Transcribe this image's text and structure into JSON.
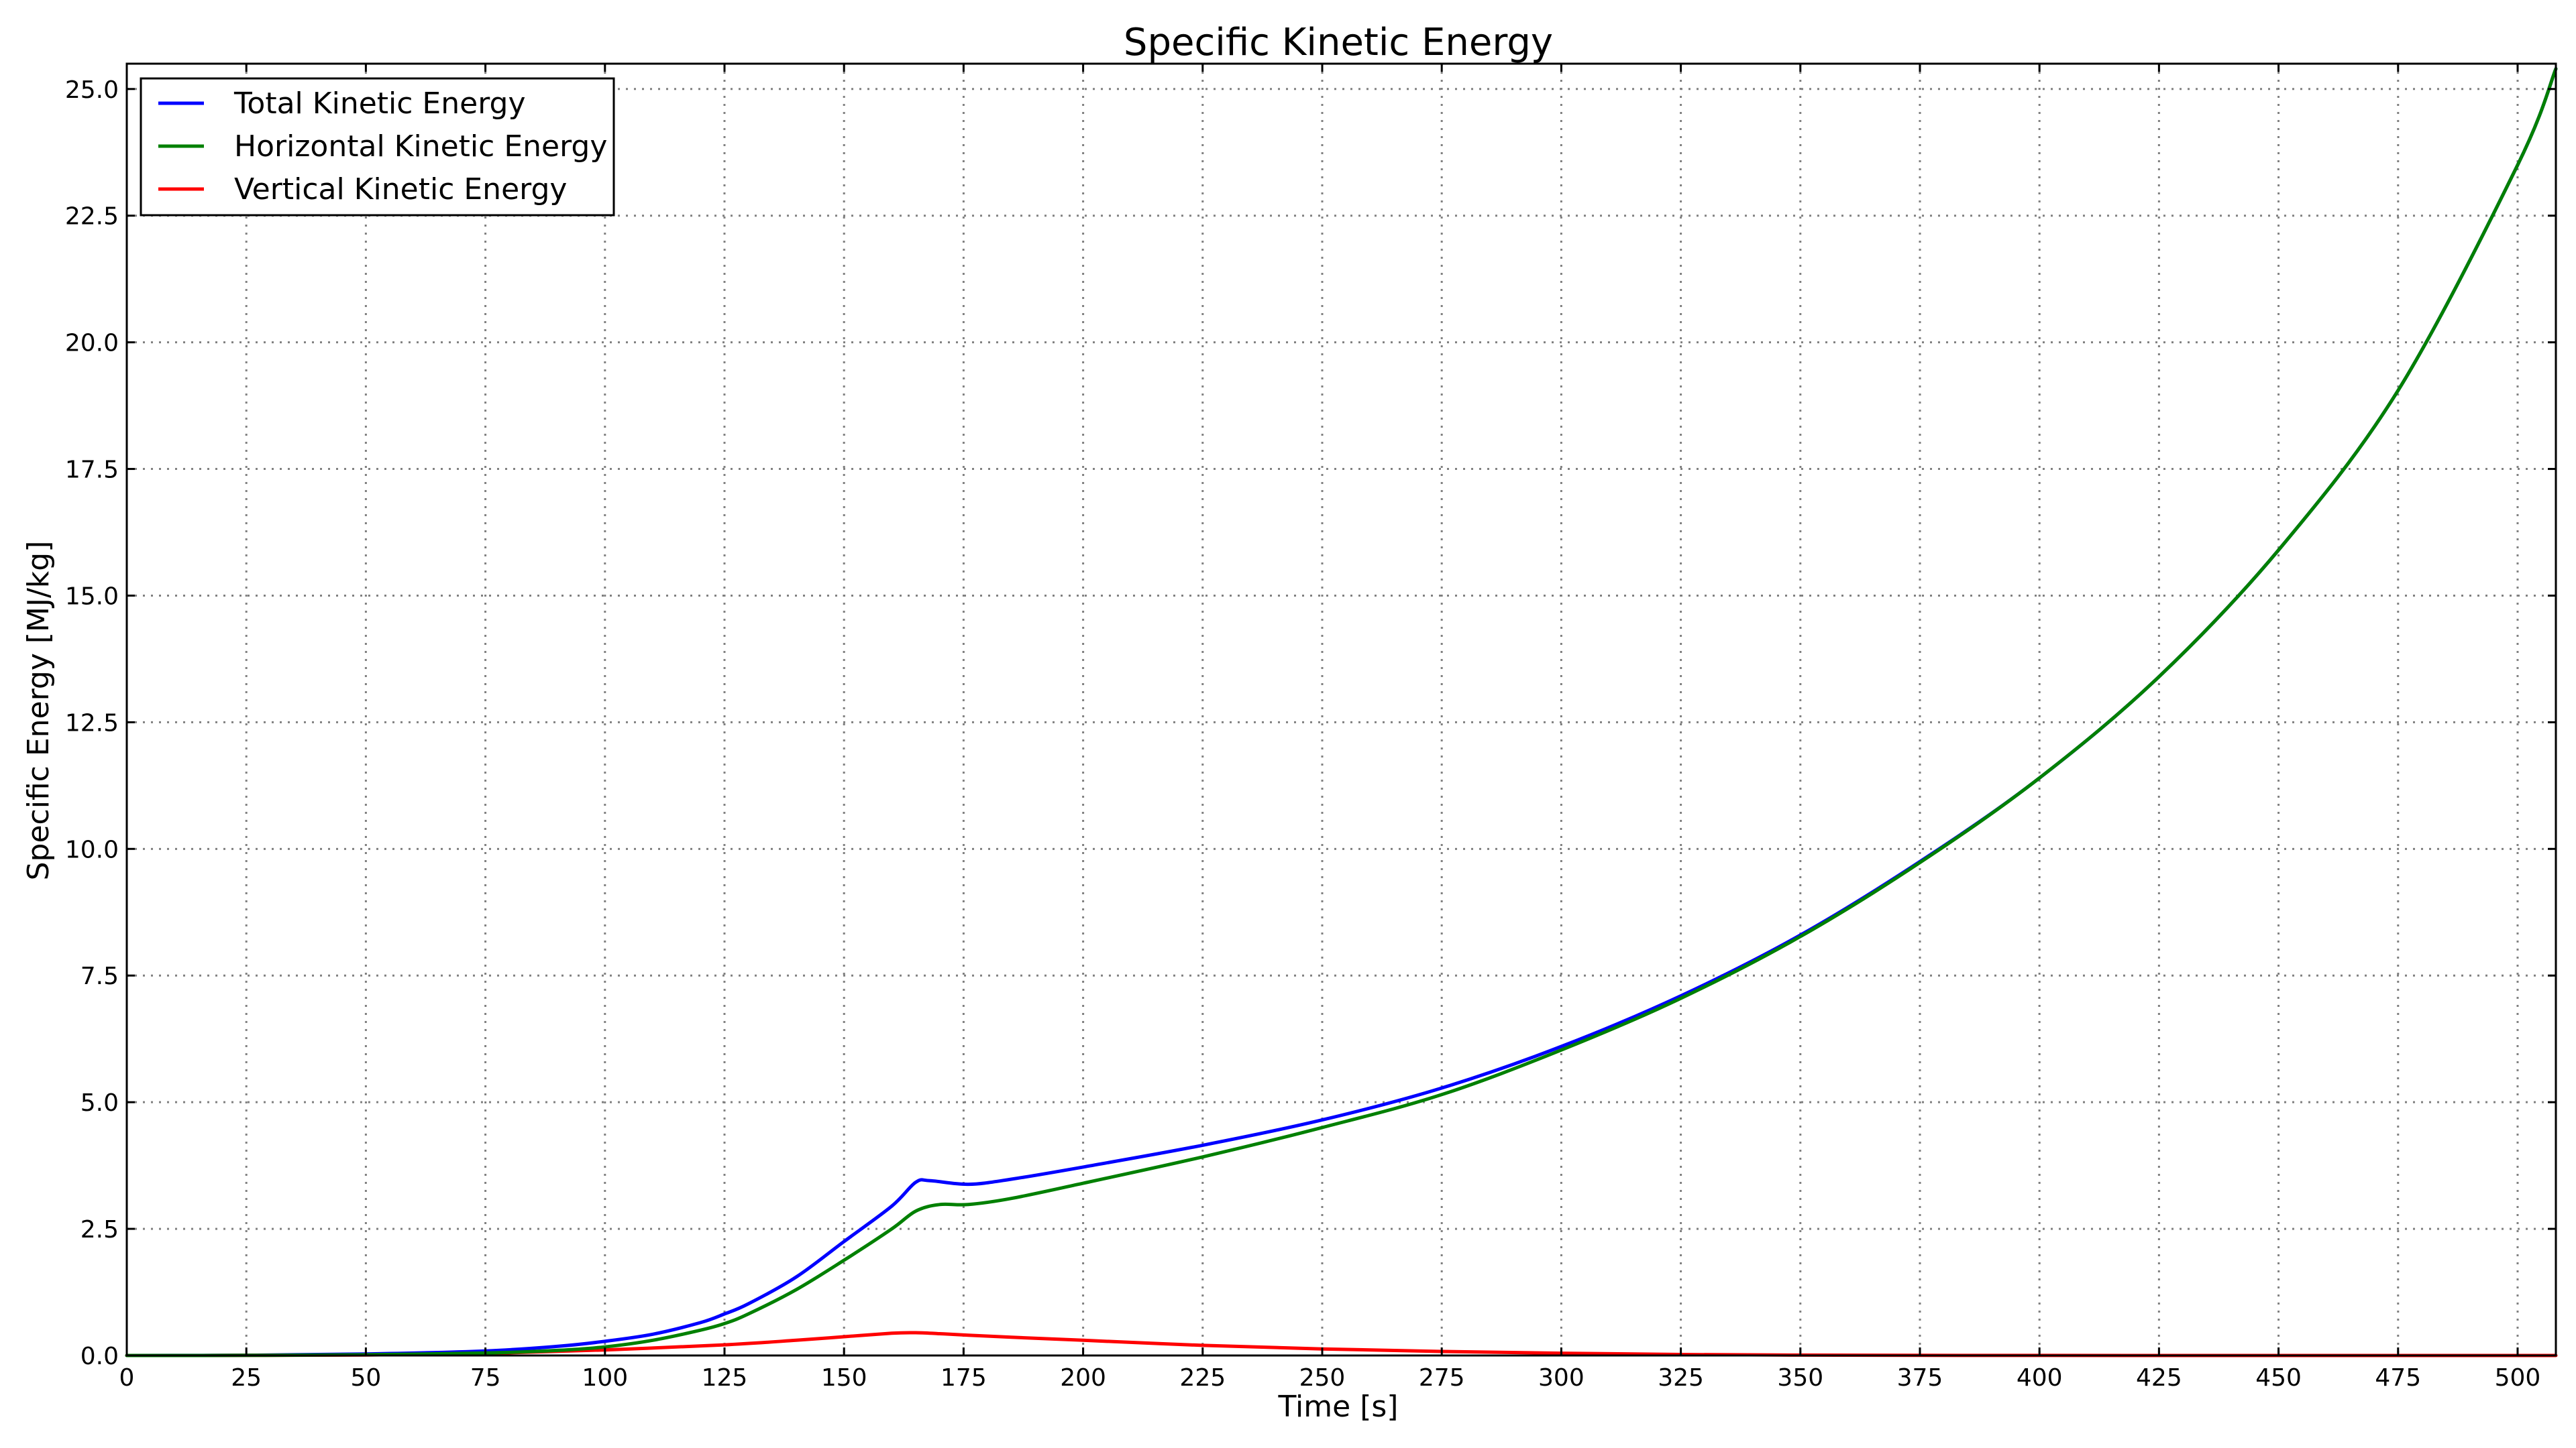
{
  "chart_data": {
    "type": "line",
    "title": "Specific Kinetic Energy",
    "xlabel": "Time [s]",
    "ylabel": "Specific Energy [MJ/kg]",
    "xlim": [
      0,
      508
    ],
    "ylim": [
      0,
      25.5
    ],
    "xticks": [
      0,
      25,
      50,
      75,
      100,
      125,
      150,
      175,
      200,
      225,
      250,
      275,
      300,
      325,
      350,
      375,
      400,
      425,
      450,
      475,
      500
    ],
    "xtick_labels": [
      "0",
      "25",
      "50",
      "75",
      "100",
      "125",
      "150",
      "175",
      "200",
      "225",
      "250",
      "275",
      "300",
      "325",
      "350",
      "375",
      "400",
      "425",
      "450",
      "475",
      "500"
    ],
    "yticks": [
      0,
      2.5,
      5,
      7.5,
      10,
      12.5,
      15,
      17.5,
      20,
      22.5,
      25
    ],
    "ytick_labels": [
      "0.0",
      "2.5",
      "5.0",
      "7.5",
      "10.0",
      "12.5",
      "15.0",
      "17.5",
      "20.0",
      "22.5",
      "25.0"
    ],
    "grid": true,
    "legend_position": "top-left",
    "series": [
      {
        "name": "Total Kinetic Energy",
        "color": "#0000ff",
        "x": [
          0,
          25,
          50,
          75,
          90,
          100,
          110,
          120,
          125,
          130,
          140,
          150,
          160,
          165,
          168,
          176,
          185,
          200,
          225,
          250,
          275,
          300,
          325,
          350,
          375,
          400,
          425,
          450,
          475,
          500,
          508
        ],
        "y": [
          0,
          0.005,
          0.03,
          0.09,
          0.18,
          0.28,
          0.42,
          0.65,
          0.82,
          1.02,
          1.55,
          2.25,
          2.95,
          3.42,
          3.45,
          3.38,
          3.48,
          3.72,
          4.15,
          4.65,
          5.28,
          6.1,
          7.1,
          8.3,
          9.75,
          11.4,
          13.4,
          15.9,
          19.05,
          23.5,
          25.4
        ]
      },
      {
        "name": "Horizontal Kinetic Energy",
        "color": "#008000",
        "x": [
          0,
          25,
          50,
          75,
          90,
          100,
          110,
          120,
          125,
          130,
          140,
          150,
          160,
          165,
          170,
          176,
          185,
          200,
          225,
          250,
          275,
          300,
          325,
          350,
          375,
          400,
          425,
          450,
          475,
          500,
          508
        ],
        "y": [
          0,
          0.003,
          0.015,
          0.05,
          0.1,
          0.17,
          0.3,
          0.5,
          0.63,
          0.82,
          1.3,
          1.88,
          2.5,
          2.85,
          2.98,
          2.98,
          3.1,
          3.4,
          3.92,
          4.5,
          5.15,
          6.03,
          7.05,
          8.27,
          9.73,
          11.4,
          13.4,
          15.9,
          19.05,
          23.5,
          25.4
        ]
      },
      {
        "name": "Vertical Kinetic Energy",
        "color": "#ff0000",
        "x": [
          0,
          25,
          50,
          75,
          100,
          125,
          140,
          150,
          160,
          165,
          170,
          176,
          185,
          200,
          225,
          250,
          275,
          300,
          325,
          350,
          375,
          400,
          425,
          450,
          475,
          500,
          508
        ],
        "y": [
          0,
          0.002,
          0.01,
          0.04,
          0.11,
          0.21,
          0.3,
          0.37,
          0.44,
          0.45,
          0.43,
          0.4,
          0.36,
          0.3,
          0.2,
          0.13,
          0.08,
          0.045,
          0.02,
          0.008,
          0.003,
          0.001,
          0,
          0,
          0,
          0,
          0
        ]
      }
    ]
  }
}
